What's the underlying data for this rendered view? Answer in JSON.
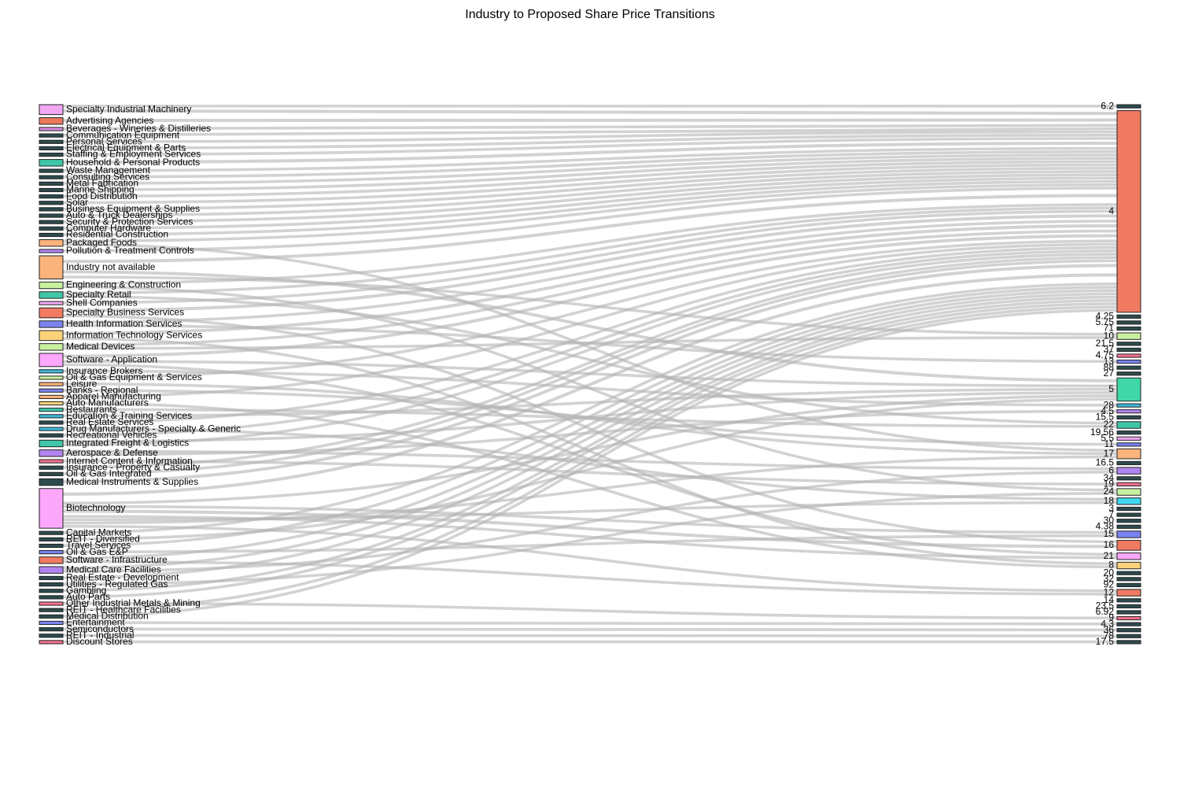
{
  "title": "Industry to Proposed Share Price Transitions",
  "colors": {
    "link": "#b4b4b4",
    "default_node": "#2a4a50"
  },
  "chart_data": {
    "type": "sankey",
    "title": "Industry to Proposed Share Price Transitions",
    "sources": [
      {
        "label": "Specialty Industrial Machinery",
        "color": "#f1a7f2"
      },
      {
        "label": "Advertising Agencies",
        "color": "#e9785c"
      },
      {
        "label": "Beverages - Wineries & Distilleries",
        "color": "#d78be0"
      },
      {
        "label": "Communication Equipment",
        "color": "#2d4b4e"
      },
      {
        "label": "Personal Services",
        "color": "#2d4b4e"
      },
      {
        "label": "Electrical Equipment & Parts",
        "color": "#2d4b4e"
      },
      {
        "label": "Staffing & Employment Services",
        "color": "#2d4b4e"
      },
      {
        "label": "Household & Personal Products",
        "color": "#3fc7a8"
      },
      {
        "label": "Waste Management",
        "color": "#2d4b4e"
      },
      {
        "label": "Consulting Services",
        "color": "#2d4b4e"
      },
      {
        "label": "Metal Fabrication",
        "color": "#2d4b4e"
      },
      {
        "label": "Marine Shipping",
        "color": "#2d4b4e"
      },
      {
        "label": "Food Distribution",
        "color": "#2d4b4e"
      },
      {
        "label": "Solar",
        "color": "#2d4b4e"
      },
      {
        "label": "Business Equipment & Supplies",
        "color": "#2d4b4e"
      },
      {
        "label": "Auto & Truck Dealerships",
        "color": "#2d4b4e"
      },
      {
        "label": "Security & Protection Services",
        "color": "#2d4b4e"
      },
      {
        "label": "Computer Hardware",
        "color": "#2d4b4e"
      },
      {
        "label": "Residential Construction",
        "color": "#2d4b4e"
      },
      {
        "label": "Packaged Foods",
        "color": "#fbb37c"
      },
      {
        "label": "Pollution & Treatment Controls",
        "color": "#b185f0"
      },
      {
        "label": "Industry not available",
        "color": "#fbb37c"
      },
      {
        "label": "Engineering & Construction",
        "color": "#c7f0a0"
      },
      {
        "label": "Specialty Retail",
        "color": "#3fc7a8"
      },
      {
        "label": "Shell Companies",
        "color": "#f1a7f2"
      },
      {
        "label": "Specialty Business Services",
        "color": "#f17a62"
      },
      {
        "label": "Health Information Services",
        "color": "#7b83f0"
      },
      {
        "label": "Information Technology Services",
        "color": "#fbd27a"
      },
      {
        "label": "Medical Devices",
        "color": "#c7f0a0"
      },
      {
        "label": "Software - Application",
        "color": "#fba7fb"
      },
      {
        "label": "Insurance Brokers",
        "color": "#3fb8d7"
      },
      {
        "label": "Oil & Gas Equipment & Services",
        "color": "#c7f0a0"
      },
      {
        "label": "Leisure",
        "color": "#fbb37c"
      },
      {
        "label": "Banks - Regional",
        "color": "#7b83f0"
      },
      {
        "label": "Apparel Manufacturing",
        "color": "#fbb37c"
      },
      {
        "label": "Auto Manufacturers",
        "color": "#fbd27a"
      },
      {
        "label": "Restaurants",
        "color": "#3fc7a8"
      },
      {
        "label": "Education & Training Services",
        "color": "#3fb8d7"
      },
      {
        "label": "Real Estate Services",
        "color": "#2d4b4e"
      },
      {
        "label": "Drug Manufacturers - Specialty & Generic",
        "color": "#3fb8d7"
      },
      {
        "label": "Recreational Vehicles",
        "color": "#2d4b4e"
      },
      {
        "label": "Integrated Freight & Logistics",
        "color": "#3fc7a8"
      },
      {
        "label": "Aerospace & Defense",
        "color": "#b185f0"
      },
      {
        "label": "Internet Content & Information",
        "color": "#f1718f"
      },
      {
        "label": "Insurance - Property & Casualty",
        "color": "#2d4b4e"
      },
      {
        "label": "Oil & Gas Integrated",
        "color": "#2d4b4e"
      },
      {
        "label": "Medical Instruments & Supplies",
        "color": "#2d4b4e"
      },
      {
        "label": "Biotechnology",
        "color": "#fba7fb"
      },
      {
        "label": "Capital Markets",
        "color": "#2d4b4e"
      },
      {
        "label": "REIT - Diversified",
        "color": "#2d4b4e"
      },
      {
        "label": "Travel Services",
        "color": "#2d4b4e"
      },
      {
        "label": "Oil & Gas E&P",
        "color": "#7b83f0"
      },
      {
        "label": "Software - Infrastructure",
        "color": "#f17a62"
      },
      {
        "label": "Medical Care Facilities",
        "color": "#b185f0"
      },
      {
        "label": "Real Estate - Development",
        "color": "#2d4b4e"
      },
      {
        "label": "Utilities - Regulated Gas",
        "color": "#2d4b4e"
      },
      {
        "label": "Gambling",
        "color": "#2d4b4e"
      },
      {
        "label": "Auto Parts",
        "color": "#2d4b4e"
      },
      {
        "label": "Other Industrial Metals & Mining",
        "color": "#f1718f"
      },
      {
        "label": "REIT - Healthcare Facilities",
        "color": "#2d4b4e"
      },
      {
        "label": "Medical Distribution",
        "color": "#2d4b4e"
      },
      {
        "label": "Entertainment",
        "color": "#7b83f0"
      },
      {
        "label": "Semiconductors",
        "color": "#2d4b4e"
      },
      {
        "label": "REIT - Industrial",
        "color": "#2d4b4e"
      },
      {
        "label": "Discount Stores",
        "color": "#f1718f"
      }
    ],
    "targets": [
      {
        "label": "6.2",
        "color": "#2d4b4e"
      },
      {
        "label": "4",
        "color": "#f17a62"
      },
      {
        "label": "4.25",
        "color": "#2d4b4e"
      },
      {
        "label": "5.75",
        "color": "#2d4b4e"
      },
      {
        "label": "71",
        "color": "#2d4b4e"
      },
      {
        "label": "10",
        "color": "#c7f0a0"
      },
      {
        "label": "21.5",
        "color": "#2d4b4e"
      },
      {
        "label": "37",
        "color": "#2d4b4e"
      },
      {
        "label": "4.75",
        "color": "#f1718f"
      },
      {
        "label": "13",
        "color": "#7b83f0"
      },
      {
        "label": "88",
        "color": "#2d4b4e"
      },
      {
        "label": "27",
        "color": "#2d4b4e"
      },
      {
        "label": "5",
        "color": "#3fd7a8"
      },
      {
        "label": "28",
        "color": "#3fb8d7"
      },
      {
        "label": "4.5",
        "color": "#b185f0"
      },
      {
        "label": "15.5",
        "color": "#2d4b4e"
      },
      {
        "label": "22",
        "color": "#3fc7a8"
      },
      {
        "label": "19.56",
        "color": "#2d4b4e"
      },
      {
        "label": "5.5",
        "color": "#f1a7f2"
      },
      {
        "label": "11",
        "color": "#7b83f0"
      },
      {
        "label": "17",
        "color": "#fbb37c"
      },
      {
        "label": "16.5",
        "color": "#2d4b4e"
      },
      {
        "label": "6",
        "color": "#b185f0"
      },
      {
        "label": "34",
        "color": "#2d4b4e"
      },
      {
        "label": "19",
        "color": "#f1718f"
      },
      {
        "label": "24",
        "color": "#c7f0a0"
      },
      {
        "label": "18",
        "color": "#3fd7f0"
      },
      {
        "label": "3",
        "color": "#2d4b4e"
      },
      {
        "label": "7",
        "color": "#2d4b4e"
      },
      {
        "label": "30",
        "color": "#2d4b4e"
      },
      {
        "label": "4.38",
        "color": "#2d4b4e"
      },
      {
        "label": "15",
        "color": "#7b83f0"
      },
      {
        "label": "16",
        "color": "#f17a62"
      },
      {
        "label": "21",
        "color": "#fba7fb"
      },
      {
        "label": "8",
        "color": "#fbd27a"
      },
      {
        "label": "20",
        "color": "#2d4b4e"
      },
      {
        "label": "32",
        "color": "#2d4b4e"
      },
      {
        "label": "92",
        "color": "#2d4b4e"
      },
      {
        "label": "12",
        "color": "#f17a62"
      },
      {
        "label": "14",
        "color": "#2d4b4e"
      },
      {
        "label": "23.5",
        "color": "#2d4b4e"
      },
      {
        "label": "6.92",
        "color": "#2d4b4e"
      },
      {
        "label": "9",
        "color": "#f1718f"
      },
      {
        "label": "4.3",
        "color": "#2d4b4e"
      },
      {
        "label": "36",
        "color": "#2d4b4e"
      },
      {
        "label": "78",
        "color": "#2d4b4e"
      },
      {
        "label": "17.5",
        "color": "#2d4b4e"
      }
    ],
    "links": [
      [
        "Specialty Industrial Machinery",
        "6.2",
        1
      ],
      [
        "Specialty Industrial Machinery",
        "4",
        2
      ],
      [
        "Advertising Agencies",
        "4",
        2
      ],
      [
        "Beverages - Wineries & Distilleries",
        "4",
        1
      ],
      [
        "Communication Equipment",
        "4",
        1
      ],
      [
        "Personal Services",
        "4",
        1
      ],
      [
        "Electrical Equipment & Parts",
        "4",
        1
      ],
      [
        "Staffing & Employment Services",
        "4",
        1
      ],
      [
        "Household & Personal Products",
        "4",
        2
      ],
      [
        "Waste Management",
        "4",
        1
      ],
      [
        "Consulting Services",
        "4",
        1
      ],
      [
        "Metal Fabrication",
        "4",
        1
      ],
      [
        "Marine Shipping",
        "4",
        1
      ],
      [
        "Food Distribution",
        "4",
        1
      ],
      [
        "Solar",
        "4",
        1
      ],
      [
        "Business Equipment & Supplies",
        "4",
        1
      ],
      [
        "Auto & Truck Dealerships",
        "4",
        1
      ],
      [
        "Security & Protection Services",
        "4",
        1
      ],
      [
        "Computer Hardware",
        "4",
        1
      ],
      [
        "Residential Construction",
        "4",
        1
      ],
      [
        "Packaged Foods",
        "4",
        1
      ],
      [
        "Packaged Foods",
        "17",
        1
      ],
      [
        "Pollution & Treatment Controls",
        "4",
        1
      ],
      [
        "Industry not available",
        "4",
        4
      ],
      [
        "Industry not available",
        "5",
        2
      ],
      [
        "Industry not available",
        "10",
        1
      ],
      [
        "Engineering & Construction",
        "4",
        1
      ],
      [
        "Engineering & Construction",
        "24",
        1
      ],
      [
        "Specialty Retail",
        "4",
        1
      ],
      [
        "Specialty Retail",
        "22",
        1
      ],
      [
        "Shell Companies",
        "4",
        1
      ],
      [
        "Specialty Business Services",
        "4",
        2
      ],
      [
        "Specialty Business Services",
        "16",
        1
      ],
      [
        "Health Information Services",
        "4",
        1
      ],
      [
        "Health Information Services",
        "13",
        1
      ],
      [
        "Information Technology Services",
        "4",
        2
      ],
      [
        "Information Technology Services",
        "8",
        1
      ],
      [
        "Medical Devices",
        "4",
        1
      ],
      [
        "Medical Devices",
        "10",
        1
      ],
      [
        "Software - Application",
        "4",
        2
      ],
      [
        "Software - Application",
        "5",
        1
      ],
      [
        "Software - Application",
        "21",
        1
      ],
      [
        "Insurance Brokers",
        "28",
        1
      ],
      [
        "Oil & Gas Equipment & Services",
        "4",
        1
      ],
      [
        "Leisure",
        "17",
        1
      ],
      [
        "Banks - Regional",
        "11",
        1
      ],
      [
        "Apparel Manufacturing",
        "4",
        1
      ],
      [
        "Auto Manufacturers",
        "8",
        1
      ],
      [
        "Restaurants",
        "22",
        1
      ],
      [
        "Education & Training Services",
        "5",
        1
      ],
      [
        "Real Estate Services",
        "4",
        1
      ],
      [
        "Drug Manufacturers - Specialty & Generic",
        "18",
        1
      ],
      [
        "Recreational Vehicles",
        "4",
        1
      ],
      [
        "Integrated Freight & Logistics",
        "5",
        1
      ],
      [
        "Integrated Freight & Logistics",
        "4",
        1
      ],
      [
        "Aerospace & Defense",
        "6",
        1
      ],
      [
        "Aerospace & Defense",
        "4.5",
        1
      ],
      [
        "Internet Content & Information",
        "19",
        1
      ],
      [
        "Insurance - Property & Casualty",
        "4",
        1
      ],
      [
        "Oil & Gas Integrated",
        "4",
        1
      ],
      [
        "Medical Instruments & Supplies",
        "4",
        2
      ],
      [
        "Biotechnology",
        "4",
        4
      ],
      [
        "Biotechnology",
        "5",
        1
      ],
      [
        "Biotechnology",
        "15",
        1
      ],
      [
        "Biotechnology",
        "16",
        2
      ],
      [
        "Biotechnology",
        "21",
        1
      ],
      [
        "Biotechnology",
        "18",
        1
      ],
      [
        "Biotechnology",
        "17",
        1
      ],
      [
        "Biotechnology",
        "12",
        1
      ],
      [
        "Capital Markets",
        "4",
        1
      ],
      [
        "REIT - Diversified",
        "5",
        1
      ],
      [
        "Travel Services",
        "4",
        1
      ],
      [
        "Oil & Gas E&P",
        "15",
        1
      ],
      [
        "Software - Infrastructure",
        "4",
        1
      ],
      [
        "Software - Infrastructure",
        "12",
        1
      ],
      [
        "Medical Care Facilities",
        "4",
        1
      ],
      [
        "Medical Care Facilities",
        "6",
        1
      ],
      [
        "Real Estate - Development",
        "4",
        1
      ],
      [
        "Utilities - Regulated Gas",
        "24",
        1
      ],
      [
        "Gambling",
        "4",
        1
      ],
      [
        "Auto Parts",
        "4",
        1
      ],
      [
        "Other Industrial Metals & Mining",
        "9",
        1
      ],
      [
        "REIT - Healthcare Facilities",
        "4",
        1
      ],
      [
        "Medical Distribution",
        "4",
        1
      ],
      [
        "Entertainment",
        "4.3",
        1
      ],
      [
        "Semiconductors",
        "36",
        1
      ],
      [
        "REIT - Industrial",
        "78",
        1
      ],
      [
        "Discount Stores",
        "17.5",
        1
      ]
    ]
  }
}
